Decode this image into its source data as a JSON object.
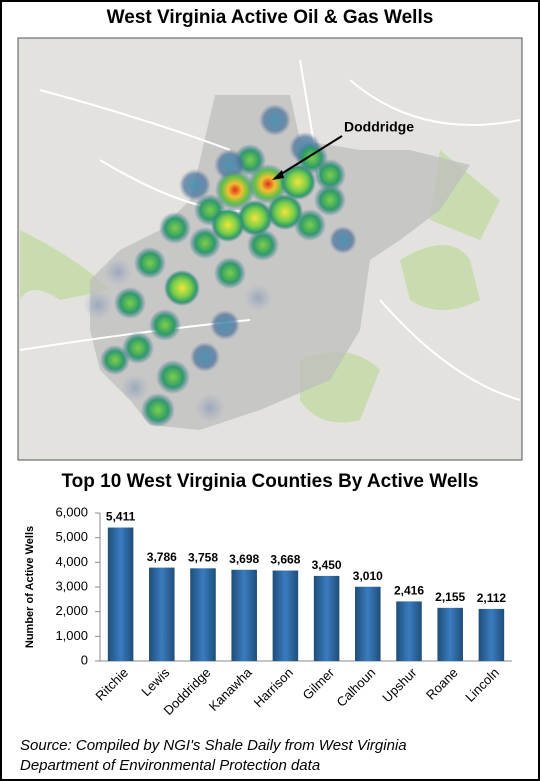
{
  "header": {
    "title": "West Virginia Active Oil & Gas Wells"
  },
  "map": {
    "annotation": "Doddridge"
  },
  "chart_data": {
    "type": "bar",
    "title": "Top 10 West Virginia Counties By Active Wells",
    "y_label": "Number of Active Wells",
    "categories": [
      "Ritchie",
      "Lewis",
      "Doddridge",
      "Kanawha",
      "Harrison",
      "Gilmer",
      "Calhoun",
      "Upshur",
      "Roane",
      "Lincoln"
    ],
    "values": [
      5411,
      3786,
      3758,
      3698,
      3668,
      3450,
      3010,
      2416,
      2155,
      2112
    ],
    "value_labels": [
      "5,411",
      "3,786",
      "3,758",
      "3,698",
      "3,668",
      "3,450",
      "3,010",
      "2,416",
      "2,155",
      "2,112"
    ],
    "color": "#2e6aa8",
    "ylim": [
      0,
      6000
    ],
    "yticks": [
      0,
      {
        "value": 1000,
        "label": "1,000"
      },
      {
        "value": 2000,
        "label": "2,000"
      },
      {
        "value": 3000,
        "label": "3,000"
      },
      {
        "value": 4000,
        "label": "4,000"
      },
      {
        "value": 5000,
        "label": "5,000"
      },
      {
        "value": 6000,
        "label": "6,000"
      }
    ],
    "grid": false
  },
  "source": [
    "Source: Compiled by NGI's Shale Daily from West Virginia",
    "Department of Environmental Protection data"
  ]
}
